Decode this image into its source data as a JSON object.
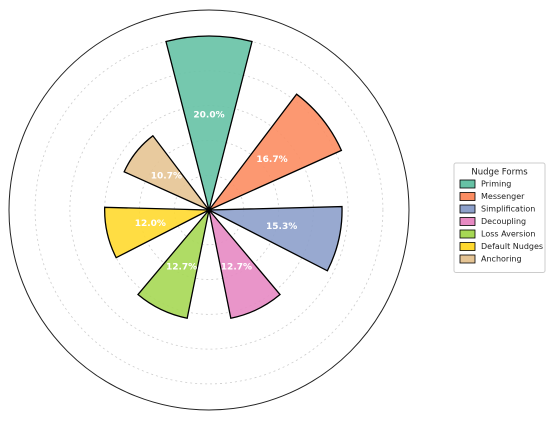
{
  "chart_data": {
    "type": "polar-bar",
    "categories": [
      "Priming",
      "Messenger",
      "Simplification",
      "Decoupling",
      "Loss Aversion",
      "Default Nudges",
      "Anchoring"
    ],
    "values": [
      20.0,
      16.7,
      15.3,
      12.7,
      12.7,
      12.0,
      10.7
    ],
    "value_labels": [
      "20.0%",
      "16.7%",
      "15.3%",
      "12.7%",
      "12.7%",
      "12.0%",
      "10.7%"
    ],
    "colors": [
      "#66c2a5",
      "#fc8d62",
      "#8da0cb",
      "#e78ac3",
      "#a6d854",
      "#ffd92f",
      "#e5c494"
    ],
    "ylim": [
      0,
      23
    ],
    "yticks": [
      4,
      8,
      12,
      16,
      20
    ],
    "grid": true,
    "legend": {
      "title": "Nudge Forms",
      "position": "right"
    }
  }
}
